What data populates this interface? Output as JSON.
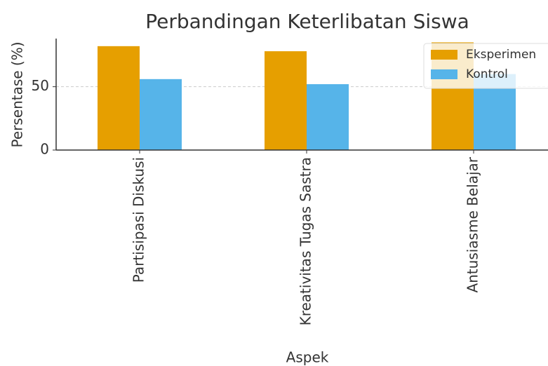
{
  "chart_data": {
    "type": "bar",
    "title": "Perbandingan Keterlibatan Siswa",
    "x_label": "Aspek",
    "y_label": "Persentase (%)",
    "categories": [
      "Partisipasi Diskusi",
      "Kreativitas Tugas Sastra",
      "Antusiasme Belajar"
    ],
    "series": [
      {
        "name": "Eksperimen",
        "color": "#e69f00",
        "values": [
          82,
          78,
          85
        ]
      },
      {
        "name": "Kontrol",
        "color": "#56b4e9",
        "values": [
          56,
          52,
          60
        ]
      }
    ],
    "ylim": [
      0,
      88
    ],
    "yticks": [
      0,
      50
    ],
    "grid": true,
    "legend": "upper right"
  }
}
